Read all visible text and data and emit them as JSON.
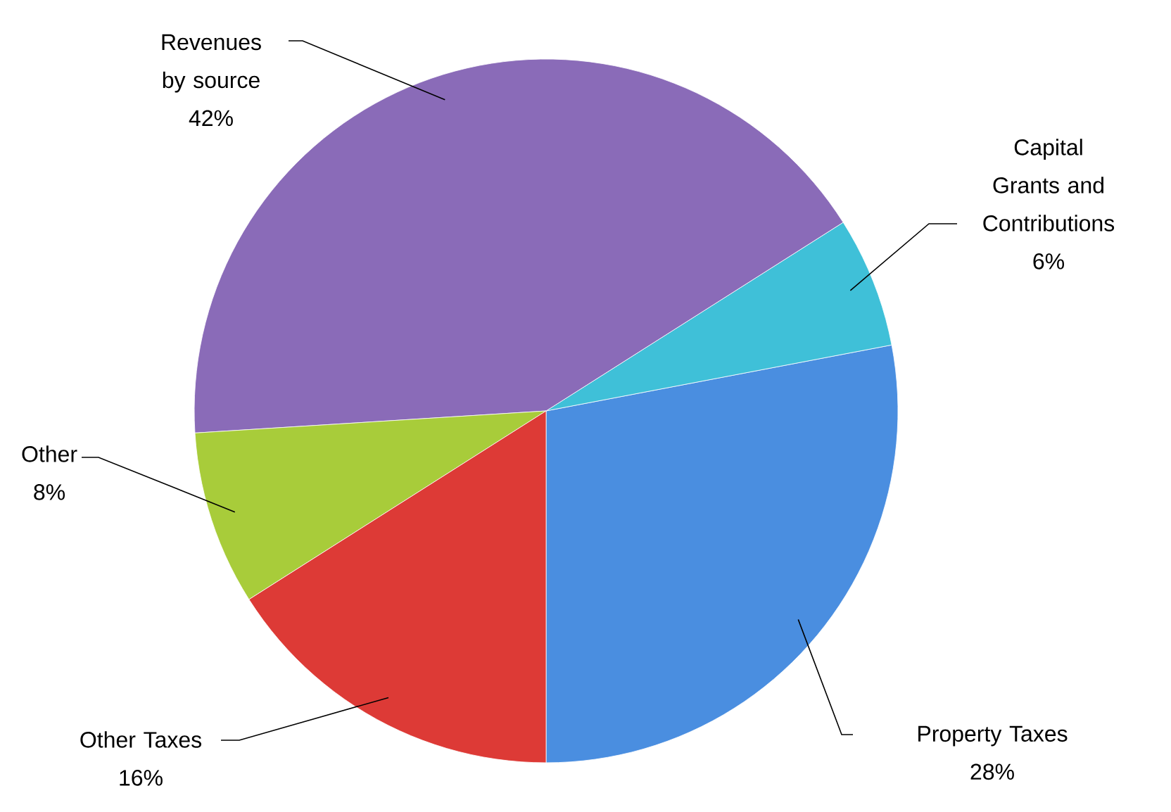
{
  "chart_data": {
    "type": "pie",
    "categories": [
      "Property Taxes",
      "Capital Grants and Contributions",
      "Revenues by source",
      "Other",
      "Other Taxes"
    ],
    "values": [
      28,
      6,
      42,
      8,
      16
    ],
    "value_labels": [
      "28%",
      "6%",
      "42%",
      "8%",
      "16%"
    ],
    "colors": [
      "#4a8ee0",
      "#3fc0d8",
      "#8a6bb8",
      "#a8cc3a",
      "#dd3a36"
    ]
  }
}
